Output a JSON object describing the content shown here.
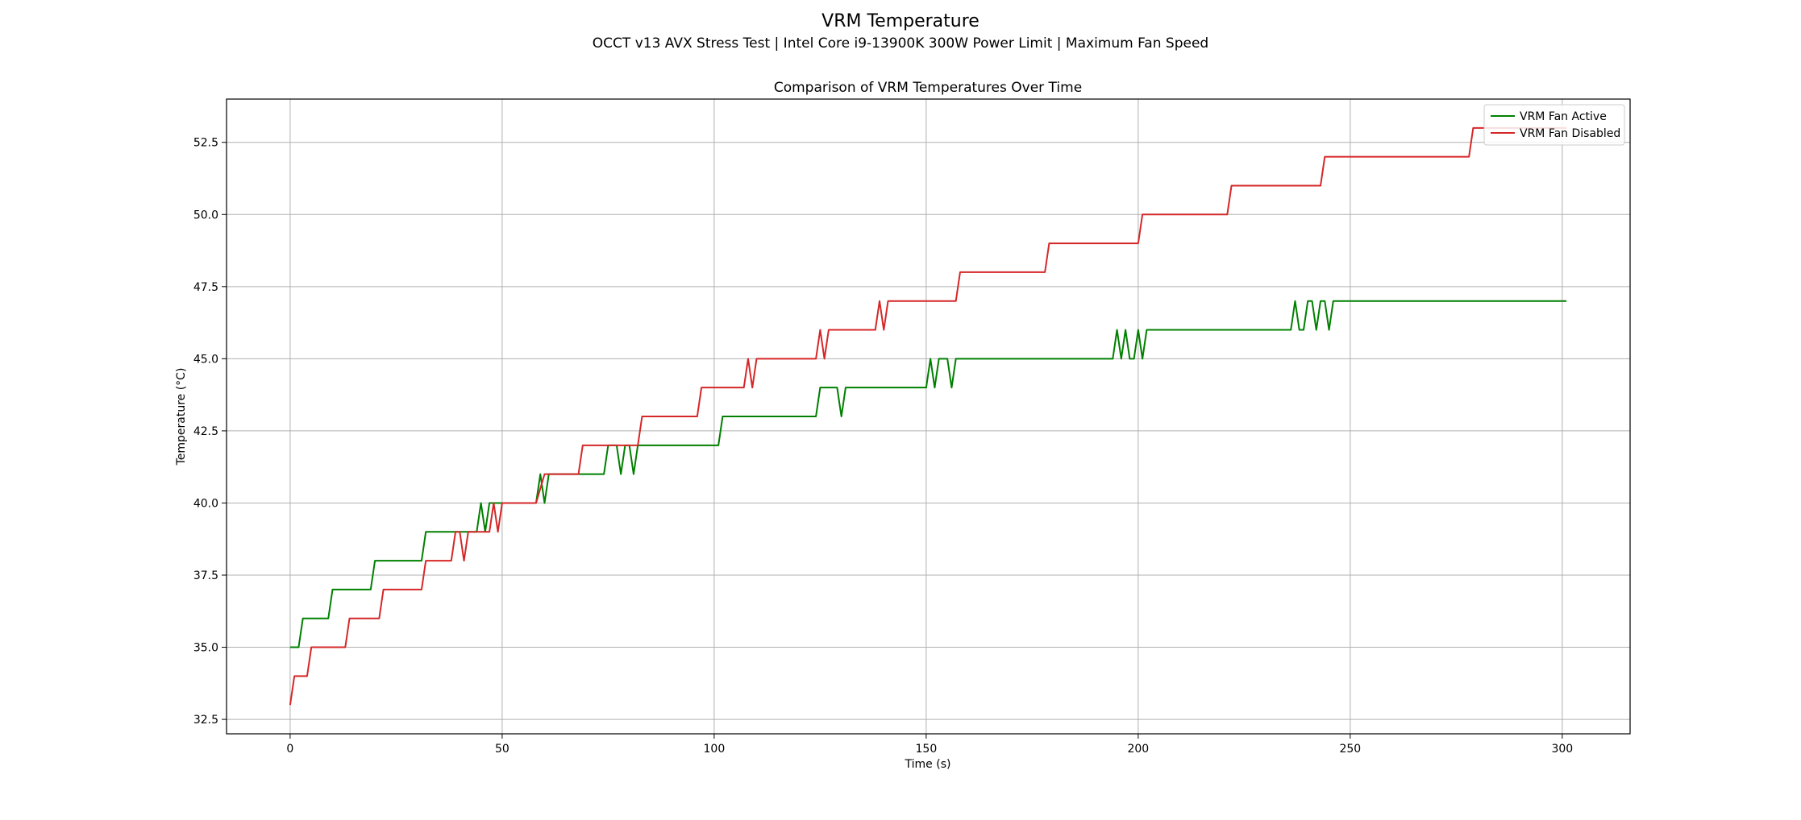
{
  "figure": {
    "title": "VRM Temperature",
    "subtitle": "OCCT v13 AVX Stress Test | Intel Core i9-13900K 300W Power Limit | Maximum Fan Speed"
  },
  "chart_data": {
    "type": "line",
    "title": "Comparison of VRM Temperatures Over Time",
    "xlabel": "Time (s)",
    "ylabel": "Temperature (°C)",
    "xlim": [
      -15,
      316
    ],
    "ylim": [
      32,
      54
    ],
    "xticks": [
      0,
      50,
      100,
      150,
      200,
      250,
      300
    ],
    "xtick_labels": [
      "0",
      "50",
      "100",
      "150",
      "200",
      "250",
      "300"
    ],
    "yticks": [
      32.5,
      35.0,
      37.5,
      40.0,
      42.5,
      45.0,
      47.5,
      50.0,
      52.5
    ],
    "ytick_labels": [
      "32.5",
      "35.0",
      "37.5",
      "40.0",
      "42.5",
      "45.0",
      "47.5",
      "50.0",
      "52.5"
    ],
    "grid": true,
    "legend_position": "top-right",
    "series": [
      {
        "name": "VRM Fan Active",
        "color": "#008000",
        "x": [
          0,
          2,
          3,
          9,
          10,
          19,
          20,
          31,
          32,
          44,
          45,
          46,
          47,
          58,
          59,
          60,
          61,
          74,
          75,
          77,
          78,
          79,
          80,
          81,
          82,
          101,
          102,
          124,
          125,
          129,
          130,
          131,
          150,
          151,
          152,
          153,
          155,
          156,
          157,
          194,
          195,
          196,
          197,
          198,
          199,
          200,
          201,
          202,
          236,
          237,
          238,
          239,
          240,
          241,
          242,
          243,
          244,
          245,
          246,
          301
        ],
        "y": [
          35,
          35,
          36,
          36,
          37,
          37,
          38,
          38,
          39,
          39,
          40,
          39,
          40,
          40,
          41,
          40,
          41,
          41,
          42,
          42,
          41,
          42,
          42,
          41,
          42,
          42,
          43,
          43,
          44,
          44,
          43,
          44,
          44,
          45,
          44,
          45,
          45,
          44,
          45,
          45,
          46,
          45,
          46,
          45,
          45,
          46,
          45,
          46,
          46,
          47,
          46,
          46,
          47,
          47,
          46,
          47,
          47,
          46,
          47,
          47
        ]
      },
      {
        "name": "VRM Fan Disabled",
        "color": "#d62728",
        "x": [
          0,
          1,
          4,
          5,
          13,
          14,
          21,
          22,
          31,
          32,
          38,
          39,
          40,
          41,
          42,
          47,
          48,
          49,
          50,
          58,
          60,
          68,
          69,
          82,
          83,
          96,
          97,
          107,
          108,
          109,
          110,
          124,
          125,
          126,
          127,
          138,
          139,
          140,
          141,
          157,
          158,
          178,
          179,
          200,
          201,
          221,
          222,
          243,
          244,
          278,
          279,
          301
        ],
        "y": [
          33,
          34,
          34,
          35,
          35,
          36,
          36,
          37,
          37,
          38,
          38,
          39,
          39,
          38,
          39,
          39,
          40,
          39,
          40,
          40,
          41,
          41,
          42,
          42,
          43,
          43,
          44,
          44,
          45,
          44,
          45,
          45,
          46,
          45,
          46,
          46,
          47,
          46,
          47,
          47,
          48,
          48,
          49,
          49,
          50,
          50,
          51,
          51,
          52,
          52,
          53,
          53
        ]
      }
    ]
  }
}
